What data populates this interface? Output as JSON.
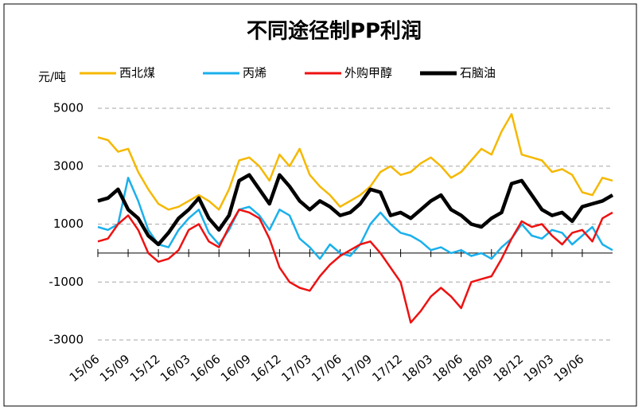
{
  "chart_data": {
    "type": "line",
    "title": "不同途径制PP利润",
    "y_label": "元/吨",
    "categories": [
      "15/06",
      null,
      null,
      "15/09",
      null,
      null,
      "15/12",
      null,
      null,
      "16/03",
      null,
      null,
      "16/06",
      null,
      null,
      "16/09",
      null,
      null,
      "16/12",
      null,
      null,
      "17/03",
      null,
      null,
      "17/06",
      null,
      null,
      "17/09",
      null,
      null,
      "17/12",
      null,
      null,
      "18/03",
      null,
      null,
      "18/06",
      null,
      null,
      "18/09",
      null,
      null,
      "18/12",
      null,
      null,
      "19/03",
      null,
      null,
      "19/06",
      null,
      null,
      null
    ],
    "series": [
      {
        "name": "西北煤",
        "color": "#f5b800",
        "values": [
          4000,
          3900,
          3500,
          3600,
          2800,
          2200,
          1700,
          1500,
          1600,
          1800,
          2000,
          1800,
          1500,
          2200,
          3200,
          3300,
          3000,
          2500,
          3400,
          3000,
          3600,
          2700,
          2300,
          2000,
          1600,
          1800,
          2000,
          2300,
          2800,
          3000,
          2700,
          2800,
          3100,
          3300,
          3000,
          2600,
          2800,
          3200,
          3600,
          3400,
          4200,
          4800,
          3400,
          3300,
          3200,
          2800,
          2900,
          2700,
          2100,
          2000,
          2600,
          2500
        ]
      },
      {
        "name": "丙烯",
        "color": "#1ab0ec",
        "values": [
          900,
          800,
          1000,
          2600,
          1800,
          800,
          300,
          200,
          800,
          1200,
          1500,
          700,
          300,
          800,
          1500,
          1600,
          1300,
          800,
          1500,
          1300,
          500,
          200,
          -200,
          300,
          0,
          -100,
          300,
          1000,
          1400,
          1000,
          700,
          600,
          400,
          100,
          200,
          0,
          100,
          -100,
          0,
          -200,
          200,
          500,
          1000,
          600,
          500,
          800,
          700,
          300,
          600,
          900,
          300,
          100
        ]
      },
      {
        "name": "外购甲醇",
        "color": "#ee1111",
        "values": [
          400,
          500,
          1000,
          1300,
          800,
          0,
          -300,
          -200,
          100,
          800,
          1000,
          400,
          200,
          900,
          1500,
          1400,
          1200,
          500,
          -500,
          -1000,
          -1200,
          -1300,
          -800,
          -400,
          -100,
          100,
          300,
          400,
          0,
          -500,
          -1000,
          -2400,
          -2000,
          -1500,
          -1200,
          -1500,
          -1900,
          -1000,
          -900,
          -800,
          -200,
          500,
          1100,
          900,
          1000,
          600,
          300,
          700,
          800,
          400,
          1200,
          1400
        ]
      },
      {
        "name": "石脑油",
        "color": "#000000",
        "values": [
          1800,
          1900,
          2200,
          1500,
          1200,
          600,
          300,
          700,
          1200,
          1500,
          1900,
          1200,
          800,
          1300,
          2500,
          2700,
          2200,
          1700,
          2700,
          2300,
          1800,
          1500,
          1800,
          1600,
          1300,
          1400,
          1700,
          2200,
          2100,
          1300,
          1400,
          1200,
          1500,
          1800,
          2000,
          1500,
          1300,
          1000,
          900,
          1200,
          1400,
          2400,
          2500,
          2000,
          1500,
          1300,
          1400,
          1100,
          1600,
          1700,
          1800,
          2000
        ]
      }
    ],
    "ylim": [
      -3000,
      5000
    ],
    "yticks": [
      5000,
      3000,
      1000,
      -1000,
      -3000
    ],
    "grid": true
  }
}
